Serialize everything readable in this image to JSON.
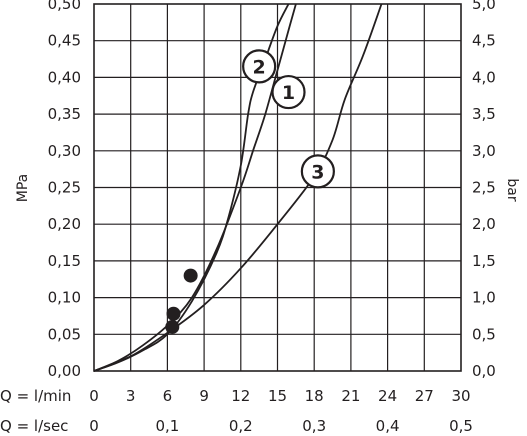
{
  "chart_data": {
    "type": "line",
    "y_left": {
      "label": "MPa",
      "range": [
        0,
        0.5
      ],
      "ticks": [
        "0,00",
        "0,05",
        "0,10",
        "0,15",
        "0,20",
        "0,25",
        "0,30",
        "0,35",
        "0,40",
        "0,45",
        "0,50"
      ]
    },
    "y_right": {
      "label": "bar",
      "range": [
        0,
        5
      ],
      "ticks": [
        "0,0",
        "0,5",
        "1,0",
        "1,5",
        "2,0",
        "2,5",
        "3,0",
        "3,5",
        "4,0",
        "4,5",
        "5,0"
      ]
    },
    "x_primary": {
      "label": "Q = l/min",
      "range": [
        0,
        30
      ],
      "ticks": [
        "0",
        "3",
        "6",
        "9",
        "12",
        "15",
        "18",
        "21",
        "24",
        "27",
        "30"
      ]
    },
    "x_secondary": {
      "label": "Q = l/sec",
      "ticks": [
        "0",
        "0,1",
        "0,2",
        "0,3",
        "0,4",
        "0,5"
      ]
    },
    "grid": true,
    "series": [
      {
        "name": "1",
        "x": [
          0,
          2,
          4,
          6,
          8,
          10,
          12,
          13,
          14,
          15,
          16,
          16.5
        ],
        "y": [
          0,
          0.014,
          0.035,
          0.062,
          0.1,
          0.165,
          0.25,
          0.3,
          0.35,
          0.41,
          0.47,
          0.5
        ],
        "marker": {
          "x": 7.9,
          "y": 0.13
        },
        "label_at": {
          "x": 15.9,
          "y": 0.38
        }
      },
      {
        "name": "2",
        "x": [
          0,
          2,
          4,
          6,
          8,
          10,
          11,
          12,
          12.6,
          13,
          14,
          15,
          15.9
        ],
        "y": [
          0,
          0.012,
          0.028,
          0.05,
          0.095,
          0.16,
          0.21,
          0.28,
          0.35,
          0.38,
          0.425,
          0.47,
          0.5
        ],
        "marker": {
          "x": 6.5,
          "y": 0.078
        },
        "label_at": {
          "x": 13.5,
          "y": 0.415
        }
      },
      {
        "name": "3",
        "x": [
          0,
          3,
          6,
          9,
          12,
          15,
          18,
          19.5,
          20.5,
          22,
          23.5
        ],
        "y": [
          0,
          0.02,
          0.052,
          0.09,
          0.14,
          0.2,
          0.265,
          0.315,
          0.37,
          0.43,
          0.5
        ],
        "marker": {
          "x": 6.4,
          "y": 0.06
        },
        "label_at": {
          "x": 18.3,
          "y": 0.272
        }
      }
    ]
  }
}
